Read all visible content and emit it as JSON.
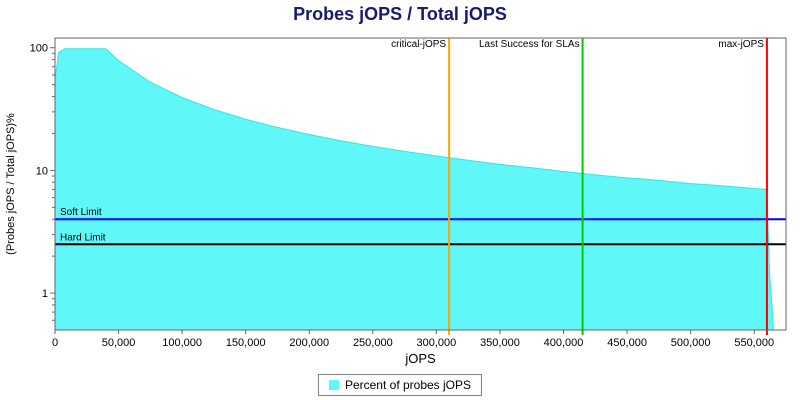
{
  "title": "Probes jOPS / Total jOPS",
  "legend": {
    "label": "Percent of probes jOPS"
  },
  "colors": {
    "title": "#191970",
    "area": "#5FF7F7",
    "area_edge": "#3FE0E0",
    "axis": "#666666",
    "critical_line": "#FFA500",
    "last_success_line": "#00CC00",
    "max_line": "#FF0000",
    "soft_limit_line": "#0000FF",
    "hard_limit_line": "#000000"
  },
  "chart_data": {
    "type": "area",
    "title": "Probes jOPS / Total jOPS",
    "xlabel": "jOPS",
    "ylabel": "(Probes jOPS / Total jOPS)%",
    "yscale": "log",
    "xlim": [
      0,
      575000
    ],
    "ylim": [
      0.5,
      120
    ],
    "x_ticks": [
      0,
      50000,
      100000,
      150000,
      200000,
      250000,
      300000,
      350000,
      400000,
      450000,
      500000,
      550000
    ],
    "y_ticks": [
      1,
      10,
      100
    ],
    "grid": false,
    "legend_position": "bottom",
    "series": [
      {
        "name": "Percent of probes jOPS",
        "x": [
          0,
          3000,
          8000,
          20000,
          40000,
          50000,
          75000,
          100000,
          125000,
          150000,
          175000,
          200000,
          225000,
          250000,
          275000,
          300000,
          325000,
          350000,
          375000,
          400000,
          425000,
          450000,
          475000,
          500000,
          525000,
          550000,
          560000,
          562000,
          565000
        ],
        "y": [
          55,
          92,
          98,
          98,
          98,
          78.4,
          52.3,
          39.2,
          31.4,
          26.1,
          22.4,
          19.6,
          17.4,
          15.7,
          14.3,
          13.1,
          12.1,
          11.2,
          10.5,
          9.8,
          9.2,
          8.7,
          8.3,
          7.8,
          7.5,
          7.1,
          7.0,
          1.5,
          0.55
        ]
      }
    ],
    "markers": {
      "vertical": [
        {
          "label": "critical-jOPS",
          "x": 310000,
          "color": "#FFA500"
        },
        {
          "label": "Last Success for SLAs",
          "x": 415000,
          "color": "#00CC00"
        },
        {
          "label": "max-jOPS",
          "x": 560000,
          "color": "#FF0000"
        }
      ],
      "horizontal": [
        {
          "label": "Soft Limit",
          "y": 4,
          "color": "#0000FF"
        },
        {
          "label": "Hard Limit",
          "y": 2.5,
          "color": "#000000"
        }
      ]
    }
  }
}
